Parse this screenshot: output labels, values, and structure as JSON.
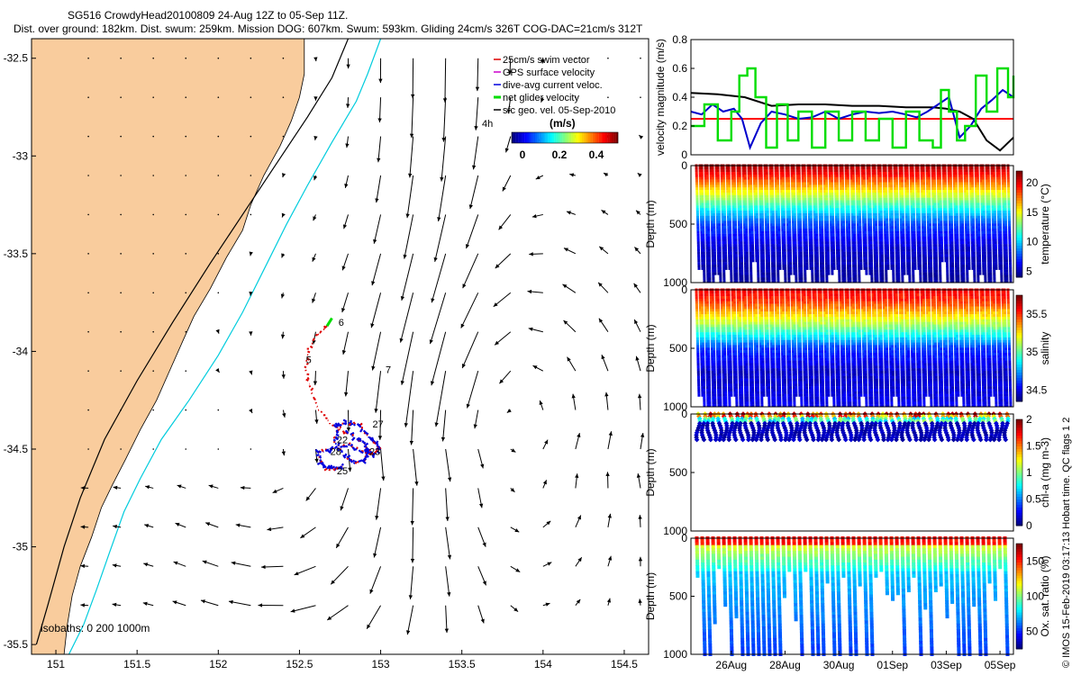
{
  "header": {
    "line1": "SG516 CrowdyHead20100809 24-Aug 12Z to 05-Sep 11Z.",
    "line2": "Dist. over ground: 182km. Dist. swum: 259km. Mission DOG: 607km. Swum: 593km. Gliding 24cm/s 326T COG-DAC=21cm/s 312T"
  },
  "credit": "© IMOS 15-Feb-2019 03:17:13 Hobart time. QC flags 1  2",
  "colors": {
    "land": "#f9cc9d",
    "isobath_200": "#00ccdd",
    "isobath_1000": "#000000",
    "swim": "#dd0000",
    "dac": "#0000dd",
    "net": "#00dd00",
    "ref_line": "#ff0000"
  },
  "chart_data": [
    {
      "id": "map",
      "type": "scatter",
      "xlim": [
        150.85,
        154.65
      ],
      "ylim": [
        -35.55,
        -32.4
      ],
      "x_ticks": [
        "151",
        "151.5",
        "152",
        "152.5",
        "153",
        "153.5",
        "154",
        "154.5"
      ],
      "x_tick_values": [
        151,
        151.5,
        152,
        152.5,
        153,
        153.5,
        154,
        154.5
      ],
      "y_ticks": [
        "-32.5",
        "-33",
        "-33.5",
        "-34",
        "-34.5",
        "-35",
        "-35.5"
      ],
      "y_tick_values": [
        -32.5,
        -33,
        -33.5,
        -34,
        -34.5,
        -35,
        -35.5
      ],
      "legend": [
        "25cm/s swim vector",
        "GPS surface velocity",
        "dive-avg current veloc.",
        "net glider velocity",
        "sfc geo. vel. 05-Sep-2010"
      ],
      "legend_position": "top-right",
      "colorbar_label": "(m/s)",
      "colorbar_ticks": [
        "0",
        "0.2",
        "0.4"
      ],
      "duration_label": "4h",
      "isobaths_label": "isobaths: 0   200   1000m",
      "day_labels": [
        {
          "text": "6",
          "lon": 152.74,
          "lat": -33.87
        },
        {
          "text": "5",
          "lon": 152.54,
          "lat": -34.06
        },
        {
          "text": "7",
          "lon": 153.03,
          "lat": -34.11
        },
        {
          "text": "27",
          "lon": 152.95,
          "lat": -34.39
        },
        {
          "text": "22",
          "lon": 152.73,
          "lat": -34.47
        },
        {
          "text": "28",
          "lon": 152.69,
          "lat": -34.53
        },
        {
          "text": "23",
          "lon": 152.93,
          "lat": -34.53
        },
        {
          "text": "25",
          "lon": 152.73,
          "lat": -34.63
        }
      ],
      "coastline": [
        [
          151.05,
          -35.55
        ],
        [
          151.07,
          -35.4
        ],
        [
          151.1,
          -35.25
        ],
        [
          151.15,
          -35.1
        ],
        [
          151.22,
          -34.95
        ],
        [
          151.28,
          -34.8
        ],
        [
          151.35,
          -34.68
        ],
        [
          151.43,
          -34.55
        ],
        [
          151.52,
          -34.4
        ],
        [
          151.62,
          -34.25
        ],
        [
          151.7,
          -34.1
        ],
        [
          151.78,
          -33.95
        ],
        [
          151.85,
          -33.82
        ],
        [
          151.95,
          -33.68
        ],
        [
          152.05,
          -33.52
        ],
        [
          152.15,
          -33.38
        ],
        [
          152.2,
          -33.25
        ],
        [
          152.28,
          -33.1
        ],
        [
          152.38,
          -32.95
        ],
        [
          152.45,
          -32.82
        ],
        [
          152.5,
          -32.7
        ],
        [
          152.53,
          -32.58
        ],
        [
          152.53,
          -32.4
        ]
      ],
      "isobath_200": [
        [
          151.08,
          -35.55
        ],
        [
          151.17,
          -35.4
        ],
        [
          151.25,
          -35.22
        ],
        [
          151.33,
          -35.03
        ],
        [
          151.42,
          -34.82
        ],
        [
          151.52,
          -34.65
        ],
        [
          151.65,
          -34.45
        ],
        [
          151.82,
          -34.25
        ],
        [
          152.0,
          -34.02
        ],
        [
          152.15,
          -33.8
        ],
        [
          152.3,
          -33.55
        ],
        [
          152.42,
          -33.35
        ],
        [
          152.55,
          -33.15
        ],
        [
          152.7,
          -32.93
        ],
        [
          152.85,
          -32.72
        ],
        [
          152.92,
          -32.58
        ],
        [
          153.0,
          -32.4
        ]
      ],
      "isobath_1000": [
        [
          150.88,
          -35.5
        ],
        [
          150.95,
          -35.3
        ],
        [
          151.05,
          -35.0
        ],
        [
          151.15,
          -34.75
        ],
        [
          151.3,
          -34.45
        ],
        [
          151.5,
          -34.15
        ],
        [
          151.72,
          -33.85
        ],
        [
          151.95,
          -33.55
        ],
        [
          152.15,
          -33.3
        ],
        [
          152.35,
          -33.05
        ],
        [
          152.55,
          -32.8
        ],
        [
          152.7,
          -32.6
        ],
        [
          152.8,
          -32.4
        ]
      ],
      "glider_track": [
        [
          152.67,
          -33.87
        ],
        [
          152.6,
          -33.92
        ],
        [
          152.55,
          -34.0
        ],
        [
          152.54,
          -34.1
        ],
        [
          152.57,
          -34.2
        ],
        [
          152.62,
          -34.3
        ],
        [
          152.7,
          -34.38
        ],
        [
          152.8,
          -34.42
        ],
        [
          152.88,
          -34.46
        ],
        [
          152.93,
          -34.5
        ],
        [
          152.91,
          -34.55
        ],
        [
          152.84,
          -34.57
        ],
        [
          152.77,
          -34.53
        ],
        [
          152.72,
          -34.46
        ],
        [
          152.73,
          -34.39
        ],
        [
          152.79,
          -34.36
        ],
        [
          152.87,
          -34.38
        ],
        [
          152.92,
          -34.43
        ],
        [
          152.96,
          -34.46
        ],
        [
          152.99,
          -34.5
        ],
        [
          152.95,
          -34.53
        ],
        [
          152.88,
          -34.51
        ],
        [
          152.8,
          -34.48
        ],
        [
          152.7,
          -34.5
        ],
        [
          152.62,
          -34.52
        ],
        [
          152.63,
          -34.57
        ],
        [
          152.67,
          -34.6
        ],
        [
          152.72,
          -34.6
        ],
        [
          152.77,
          -34.58
        ]
      ]
    },
    {
      "id": "velocity",
      "type": "line",
      "ylabel": "velocity magnitude (m/s)",
      "ylim": [
        0,
        0.8
      ],
      "y_ticks": [
        "0",
        "0.2",
        "0.4",
        "0.6",
        "0.8"
      ],
      "y_tick_values": [
        0,
        0.2,
        0.4,
        0.6,
        0.8
      ],
      "xlim": [
        0,
        12
      ],
      "series": [
        {
          "color": "#ff0000",
          "x": [
            0,
            12
          ],
          "y": [
            0.25,
            0.25
          ]
        },
        {
          "color": "#000000",
          "x": [
            0,
            1,
            2,
            3,
            4,
            5,
            6,
            7,
            8,
            9,
            9.5,
            10,
            10.5,
            11,
            11.5,
            12
          ],
          "y": [
            0.43,
            0.42,
            0.4,
            0.34,
            0.35,
            0.35,
            0.34,
            0.34,
            0.33,
            0.33,
            0.32,
            0.3,
            0.25,
            0.1,
            0.03,
            0.12
          ]
        },
        {
          "color": "#0000cc",
          "x": [
            0,
            0.4,
            0.8,
            1.2,
            1.6,
            1.9,
            2.2,
            2.6,
            3,
            3.5,
            4,
            4.5,
            5,
            5.5,
            6,
            6.5,
            7,
            7.5,
            8,
            8.4,
            8.8,
            9.2,
            9.6,
            10,
            10.4,
            10.8,
            11.2,
            11.6,
            12
          ],
          "y": [
            0.3,
            0.28,
            0.35,
            0.3,
            0.32,
            0.25,
            0.05,
            0.22,
            0.3,
            0.28,
            0.25,
            0.26,
            0.3,
            0.25,
            0.28,
            0.3,
            0.29,
            0.3,
            0.28,
            0.26,
            0.3,
            0.35,
            0.4,
            0.12,
            0.2,
            0.32,
            0.38,
            0.45,
            0.4
          ]
        },
        {
          "color": "#00dd00",
          "x": [
            0,
            0.5,
            1,
            1.5,
            1.8,
            2.1,
            2.4,
            2.8,
            3.2,
            3.6,
            4,
            4.5,
            5,
            5.5,
            6,
            6.5,
            7,
            7.5,
            8,
            8.5,
            9,
            9.3,
            9.6,
            9.9,
            10.2,
            10.6,
            11,
            11.4,
            11.8,
            12
          ],
          "y": [
            0.2,
            0.35,
            0.1,
            0.3,
            0.55,
            0.6,
            0.4,
            0.05,
            0.35,
            0.1,
            0.3,
            0.05,
            0.3,
            0.1,
            0.3,
            0.1,
            0.25,
            0.05,
            0.3,
            0.1,
            0.05,
            0.45,
            0.3,
            0.1,
            0.2,
            0.55,
            0.3,
            0.6,
            0.4,
            0.55
          ]
        }
      ]
    },
    {
      "id": "temperature",
      "type": "heatmap",
      "ylabel": "Depth (m)",
      "ylim": [
        1000,
        0
      ],
      "y_ticks": [
        "0",
        "500",
        "1000"
      ],
      "y_tick_values": [
        0,
        500,
        1000
      ],
      "colorbar_label": "temperature (°C)",
      "colorbar_ticks": [
        "5",
        "10",
        "15",
        "20"
      ],
      "colorbar_tick_values": [
        5,
        10,
        15,
        20
      ],
      "colorbar_range": [
        4,
        22
      ],
      "profile_depths": [
        0,
        100,
        200,
        300,
        400,
        500,
        700,
        1000
      ],
      "profile_values": [
        21.5,
        19,
        16,
        13,
        10,
        7.5,
        5.5,
        4.5
      ]
    },
    {
      "id": "salinity",
      "type": "heatmap",
      "ylabel": "Depth (m)",
      "ylim": [
        1000,
        0
      ],
      "y_ticks": [
        "0",
        "500",
        "1000"
      ],
      "y_tick_values": [
        0,
        500,
        1000
      ],
      "colorbar_label": "salinity",
      "colorbar_ticks": [
        "34.5",
        "35",
        "35.5"
      ],
      "colorbar_tick_values": [
        34.5,
        35,
        35.5
      ],
      "colorbar_range": [
        34.35,
        35.75
      ],
      "profile_depths": [
        0,
        100,
        200,
        300,
        400,
        500,
        700,
        1000
      ],
      "profile_values": [
        35.6,
        35.5,
        35.3,
        35.1,
        34.85,
        34.6,
        34.45,
        34.5
      ]
    },
    {
      "id": "chla",
      "type": "heatmap",
      "ylabel": "Depth (m)",
      "ylim": [
        1000,
        0
      ],
      "y_ticks": [
        "0",
        "500",
        "1000"
      ],
      "y_tick_values": [
        0,
        500,
        1000
      ],
      "colorbar_label": "chl-a (mg m-3)",
      "colorbar_ticks": [
        "0",
        "0.5",
        "1",
        "1.5",
        "2"
      ],
      "colorbar_tick_values": [
        0,
        0.5,
        1,
        1.5,
        2
      ],
      "colorbar_range": [
        0,
        2
      ],
      "max_depth_sampled": 230
    },
    {
      "id": "oxygen",
      "type": "heatmap",
      "ylabel": "Depth (m)",
      "ylim": [
        1000,
        0
      ],
      "y_ticks": [
        "0",
        "500",
        "1000"
      ],
      "y_tick_values": [
        0,
        500,
        1000
      ],
      "colorbar_label": "Ox. sat. ratio (%)",
      "colorbar_ticks": [
        "50",
        "100",
        "150"
      ],
      "colorbar_tick_values": [
        50,
        100,
        150
      ],
      "colorbar_range": [
        25,
        175
      ],
      "x_ticks": [
        "26Aug",
        "28Aug",
        "30Aug",
        "01Sep",
        "03Sep",
        "05Sep"
      ],
      "x_tick_values": [
        1.5,
        3.5,
        5.5,
        7.5,
        9.5,
        11.5
      ],
      "xlim": [
        0,
        12
      ]
    }
  ]
}
